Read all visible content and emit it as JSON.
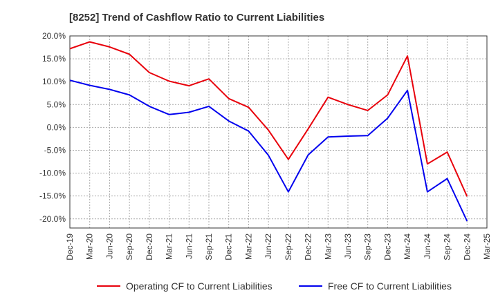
{
  "chart_data": {
    "type": "line",
    "title": "[8252]  Trend of Cashflow Ratio to Current Liabilities",
    "xlabel": "",
    "ylabel": "",
    "x_ticks": [
      "Dec-19",
      "Mar-20",
      "Jun-20",
      "Sep-20",
      "Dec-20",
      "Mar-21",
      "Jun-21",
      "Sep-21",
      "Dec-21",
      "Mar-22",
      "Jun-22",
      "Sep-22",
      "Dec-22",
      "Mar-23",
      "Jun-23",
      "Sep-23",
      "Dec-23",
      "Mar-24",
      "Jun-24",
      "Sep-24",
      "Dec-24",
      "Mar-25"
    ],
    "x": [
      "Dec-19",
      "Mar-20",
      "Jun-20",
      "Sep-20",
      "Dec-20",
      "Mar-21",
      "Jun-21",
      "Sep-21",
      "Dec-21",
      "Mar-22",
      "Jun-22",
      "Sep-22",
      "Dec-22",
      "Mar-23",
      "Jun-23",
      "Sep-23",
      "Dec-23",
      "Mar-24",
      "Jun-24",
      "Sep-24",
      "Dec-24"
    ],
    "y_ticks": [
      "20.0%",
      "15.0%",
      "10.0%",
      "5.0%",
      "0.0%",
      "-5.0%",
      "-10.0%",
      "-15.0%",
      "-20.0%"
    ],
    "ylim": [
      -22,
      20
    ],
    "grid": true,
    "legend_position": "bottom",
    "series": [
      {
        "name": "Operating CF to Current Liabilities",
        "color": "#e8000b",
        "values": [
          17.2,
          18.7,
          17.6,
          16.0,
          12.0,
          10.1,
          9.1,
          10.6,
          6.3,
          4.4,
          -0.6,
          -7.0,
          -0.3,
          6.6,
          5.0,
          3.7,
          7.1,
          15.6,
          -8.0,
          -5.4,
          -15.1
        ]
      },
      {
        "name": "Free CF to Current Liabilities",
        "color": "#0000ee",
        "values": [
          10.3,
          9.2,
          8.3,
          7.1,
          4.6,
          2.8,
          3.3,
          4.6,
          1.4,
          -0.8,
          -6.1,
          -14.1,
          -6.0,
          -2.1,
          -1.9,
          -1.8,
          2.0,
          8.1,
          -14.1,
          -11.2,
          -20.5
        ]
      }
    ]
  }
}
